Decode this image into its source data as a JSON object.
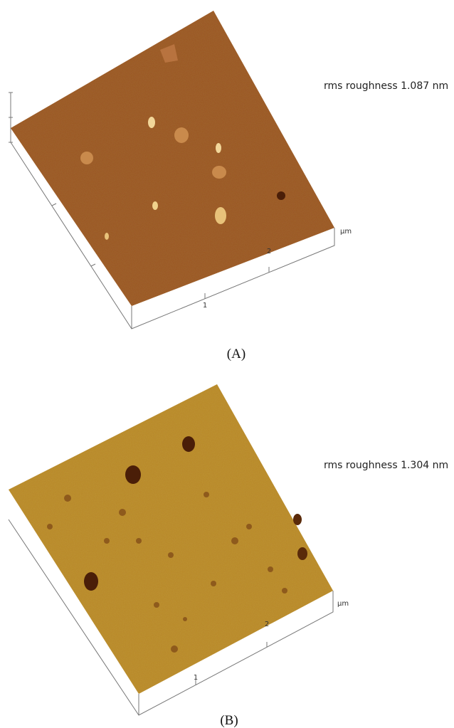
{
  "panels": [
    {
      "roughness": "rms roughness 1.087 nm",
      "ticks": [
        "1",
        "2"
      ],
      "unit": "µm",
      "label": "(A)"
    },
    {
      "roughness": "rms roughness 1.304 nm",
      "ticks": [
        "1",
        "2"
      ],
      "unit": "µm",
      "label": "(B)"
    }
  ]
}
